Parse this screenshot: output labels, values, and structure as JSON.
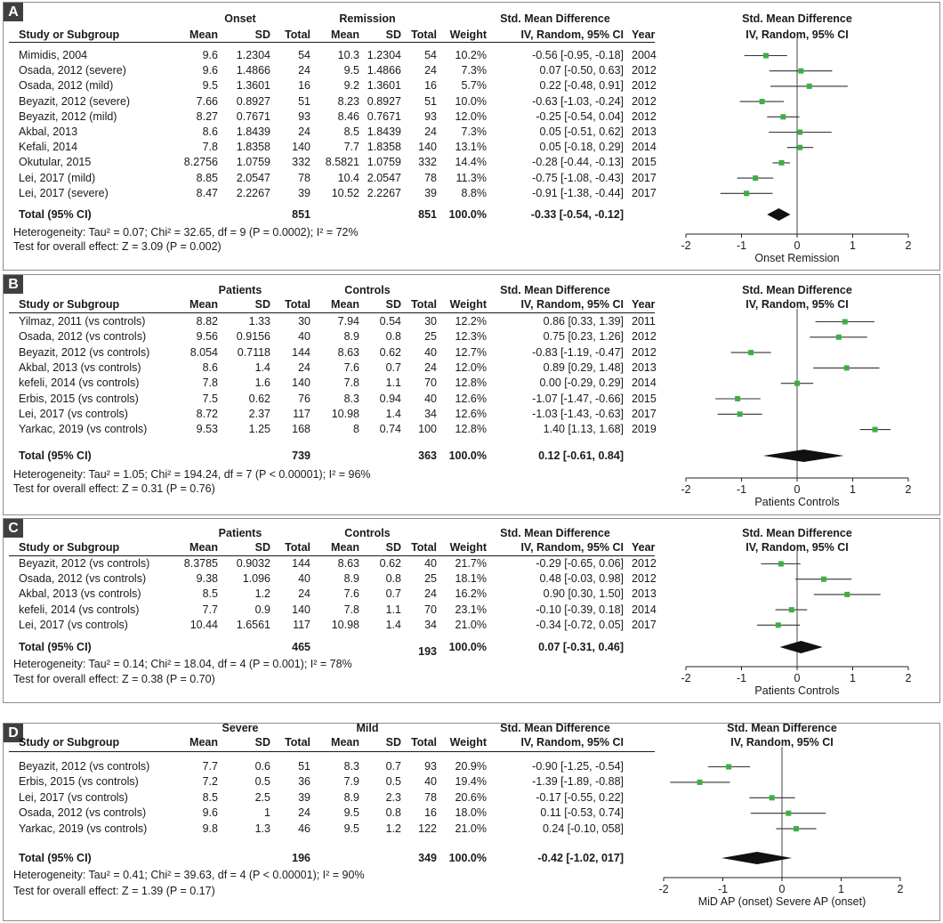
{
  "panels": [
    {
      "letter": "A",
      "group1": "Onset",
      "group2": "Remission",
      "col_study": "Study or Subgroup",
      "col_mean1": "Mean",
      "col_sd1": "SD",
      "col_total1": "Total",
      "col_mean2": "Mean",
      "col_sd2": "SD",
      "col_total2": "Total",
      "col_weight": "Weight",
      "col_smd1": "Std. Mean Difference",
      "col_smd2": "IV, Random, 95% CI",
      "col_year": "Year",
      "plot_title1": "Std. Mean Difference",
      "plot_title2": "IV, Random, 95% CI",
      "rows": [
        {
          "study": "Mimidis, 2004",
          "m1": "9.6",
          "sd1": "1.2304",
          "n1": "54",
          "m2": "10.3",
          "sd2": "1.2304",
          "n2": "54",
          "w": "10.2%",
          "ci": "-0.56 [-0.95, -0.18]",
          "year": "2004"
        },
        {
          "study": "Osada, 2012 (severe)",
          "m1": "9.6",
          "sd1": "1.4866",
          "n1": "24",
          "m2": "9.5",
          "sd2": "1.4866",
          "n2": "24",
          "w": "7.3%",
          "ci": "0.07 [-0.50, 0.63]",
          "year": "2012"
        },
        {
          "study": "Osada, 2012 (mild)",
          "m1": "9.5",
          "sd1": "1.3601",
          "n1": "16",
          "m2": "9.2",
          "sd2": "1.3601",
          "n2": "16",
          "w": "5.7%",
          "ci": "0.22 [-0.48, 0.91]",
          "year": "2012"
        },
        {
          "study": "Beyazit, 2012 (severe)",
          "m1": "7.66",
          "sd1": "0.8927",
          "n1": "51",
          "m2": "8.23",
          "sd2": "0.8927",
          "n2": "51",
          "w": "10.0%",
          "ci": "-0.63 [-1.03, -0.24]",
          "year": "2012"
        },
        {
          "study": "Beyazit, 2012 (mild)",
          "m1": "8.27",
          "sd1": "0.7671",
          "n1": "93",
          "m2": "8.46",
          "sd2": "0.7671",
          "n2": "93",
          "w": "12.0%",
          "ci": "-0.25 [-0.54, 0.04]",
          "year": "2012"
        },
        {
          "study": "Akbal, 2013",
          "m1": "8.6",
          "sd1": "1.8439",
          "n1": "24",
          "m2": "8.5",
          "sd2": "1.8439",
          "n2": "24",
          "w": "7.3%",
          "ci": "0.05 [-0.51, 0.62]",
          "year": "2013"
        },
        {
          "study": "Kefali, 2014",
          "m1": "7.8",
          "sd1": "1.8358",
          "n1": "140",
          "m2": "7.7",
          "sd2": "1.8358",
          "n2": "140",
          "w": "13.1%",
          "ci": "0.05 [-0.18, 0.29]",
          "year": "2014"
        },
        {
          "study": "Okutular, 2015",
          "m1": "8.2756",
          "sd1": "1.0759",
          "n1": "332",
          "m2": "8.5821",
          "sd2": "1.0759",
          "n2": "332",
          "w": "14.4%",
          "ci": "-0.28 [-0.44, -0.13]",
          "year": "2015"
        },
        {
          "study": "Lei, 2017 (mild)",
          "m1": "8.85",
          "sd1": "2.0547",
          "n1": "78",
          "m2": "10.4",
          "sd2": "2.0547",
          "n2": "78",
          "w": "11.3%",
          "ci": "-0.75 [-1.08, -0.43]",
          "year": "2017"
        },
        {
          "study": "Lei, 2017 (severe)",
          "m1": "8.47",
          "sd1": "2.2267",
          "n1": "39",
          "m2": "10.52",
          "sd2": "2.2267",
          "n2": "39",
          "w": "8.8%",
          "ci": "-0.91 [-1.38, -0.44]",
          "year": "2017"
        }
      ],
      "total": {
        "label": "Total (95% CI)",
        "n1": "851",
        "n2": "851",
        "w": "100.0%",
        "ci": "-0.33 [-0.54, -0.12]"
      },
      "heterogeneity": "Heterogeneity: Tau² = 0.07; Chi² = 32.65, df = 9 (P = 0.0002); I² = 72%",
      "overall": "Test for overall effect: Z = 3.09 (P = 0.002)",
      "axis_ticks": [
        "-2",
        "-1",
        "0",
        "1",
        "2"
      ],
      "axis_label": "Onset Remission"
    },
    {
      "letter": "B",
      "group1": "Patients",
      "group2": "Controls",
      "col_study": "Study or Subgroup",
      "col_mean1": "Mean",
      "col_sd1": "SD",
      "col_total1": "Total",
      "col_mean2": "Mean",
      "col_sd2": "SD",
      "col_total2": "Total",
      "col_weight": "Weight",
      "col_smd1": "Std. Mean Difference",
      "col_smd2": "IV, Random, 95% CI",
      "col_year": "Year",
      "plot_title1": "Std. Mean Difference",
      "plot_title2": "IV, Random, 95% CI",
      "rows": [
        {
          "study": "Yilmaz, 2011 (vs controls)",
          "m1": "8.82",
          "sd1": "1.33",
          "n1": "30",
          "m2": "7.94",
          "sd2": "0.54",
          "n2": "30",
          "w": "12.2%",
          "ci": "0.86 [0.33, 1.39]",
          "year": "2011"
        },
        {
          "study": "Osada, 2012 (vs controls)",
          "m1": "9.56",
          "sd1": "0.9156",
          "n1": "40",
          "m2": "8.9",
          "sd2": "0.8",
          "n2": "25",
          "w": "12.3%",
          "ci": "0.75 [0.23, 1.26]",
          "year": "2012"
        },
        {
          "study": "Beyazit, 2012 (vs controls)",
          "m1": "8.054",
          "sd1": "0.7118",
          "n1": "144",
          "m2": "8.63",
          "sd2": "0.62",
          "n2": "40",
          "w": "12.7%",
          "ci": "-0.83 [-1.19, -0.47]",
          "year": "2012"
        },
        {
          "study": "Akbal, 2013  (vs controls)",
          "m1": "8.6",
          "sd1": "1.4",
          "n1": "24",
          "m2": "7.6",
          "sd2": "0.7",
          "n2": "24",
          "w": "12.0%",
          "ci": "0.89 [0.29, 1.48]",
          "year": "2013"
        },
        {
          "study": "kefeli, 2014 (vs controls)",
          "m1": "7.8",
          "sd1": "1.6",
          "n1": "140",
          "m2": "7.8",
          "sd2": "1.1",
          "n2": "70",
          "w": "12.8%",
          "ci": "0.00 [-0.29, 0.29]",
          "year": "2014"
        },
        {
          "study": "Erbis, 2015 (vs controls)",
          "m1": "7.5",
          "sd1": "0.62",
          "n1": "76",
          "m2": "8.3",
          "sd2": "0.94",
          "n2": "40",
          "w": "12.6%",
          "ci": "-1.07 [-1.47, -0.66]",
          "year": "2015"
        },
        {
          "study": "Lei, 2017  (vs controls)",
          "m1": "8.72",
          "sd1": "2.37",
          "n1": "117",
          "m2": "10.98",
          "sd2": "1.4",
          "n2": "34",
          "w": "12.6%",
          "ci": "-1.03 [-1.43, -0.63]",
          "year": "2017"
        },
        {
          "study": "Yarkac, 2019  (vs controls)",
          "m1": "9.53",
          "sd1": "1.25",
          "n1": "168",
          "m2": "8",
          "sd2": "0.74",
          "n2": "100",
          "w": "12.8%",
          "ci": "1.40 [1.13, 1.68]",
          "year": "2019"
        }
      ],
      "total": {
        "label": "Total (95% CI)",
        "n1": "739",
        "n2": "363",
        "w": "100.0%",
        "ci": "0.12 [-0.61, 0.84]"
      },
      "heterogeneity": "Heterogeneity: Tau² = 1.05; Chi² = 194.24, df = 7 (P < 0.00001); I² = 96%",
      "overall": "Test for overall effect: Z = 0.31 (P = 0.76)",
      "axis_ticks": [
        "-2",
        "-1",
        "0",
        "1",
        "2"
      ],
      "axis_label": "Patients Controls"
    },
    {
      "letter": "C",
      "group1": "Patients",
      "group2": "Controls",
      "col_study": "Study or Subgroup",
      "col_mean1": "Mean",
      "col_sd1": "SD",
      "col_total1": "Total",
      "col_mean2": "Mean",
      "col_sd2": "SD",
      "col_total2": "Total",
      "col_weight": "Weight",
      "col_smd1": "Std. Mean Difference",
      "col_smd2": "IV, Random, 95% CI",
      "col_year": "Year",
      "plot_title1": "Std. Mean Difference",
      "plot_title2": "IV, Random, 95% CI",
      "rows": [
        {
          "study": "Beyazit, 2012 (vs controls)",
          "m1": "8.3785",
          "sd1": "0.9032",
          "n1": "144",
          "m2": "8.63",
          "sd2": "0.62",
          "n2": "40",
          "w": "21.7%",
          "ci": "-0.29 [-0.65, 0.06]",
          "year": "2012"
        },
        {
          "study": "Osada, 2012 (vs controls)",
          "m1": "9.38",
          "sd1": "1.096",
          "n1": "40",
          "m2": "8.9",
          "sd2": "0.8",
          "n2": "25",
          "w": "18.1%",
          "ci": "0.48 [-0.03, 0.98]",
          "year": "2012"
        },
        {
          "study": "Akbal, 2013  (vs controls)",
          "m1": "8.5",
          "sd1": "1.2",
          "n1": "24",
          "m2": "7.6",
          "sd2": "0.7",
          "n2": "24",
          "w": "16.2%",
          "ci": "0.90 [0.30, 1.50]",
          "year": "2013"
        },
        {
          "study": "kefeli, 2014 (vs controls)",
          "m1": "7.7",
          "sd1": "0.9",
          "n1": "140",
          "m2": "7.8",
          "sd2": "1.1",
          "n2": "70",
          "w": "23.1%",
          "ci": "-0.10 [-0.39, 0.18]",
          "year": "2014"
        },
        {
          "study": "Lei, 2017  (vs controls)",
          "m1": "10.44",
          "sd1": "1.6561",
          "n1": "117",
          "m2": "10.98",
          "sd2": "1.4",
          "n2": "34",
          "w": "21.0%",
          "ci": "-0.34 [-0.72, 0.05]",
          "year": "2017"
        }
      ],
      "total": {
        "label": "Total (95% CI)",
        "n1": "465",
        "n2": "193",
        "w": "100.0%",
        "ci": "0.07 [-0.31, 0.46]"
      },
      "heterogeneity": "Heterogeneity: Tau² = 0.14; Chi² = 18.04, df = 4 (P = 0.001); I² = 78%",
      "overall": "Test for overall effect: Z = 0.38 (P = 0.70)",
      "axis_ticks": [
        "-2",
        "-1",
        "0",
        "1",
        "2"
      ],
      "axis_label": "Patients Controls"
    },
    {
      "letter": "D",
      "group1": "Severe",
      "group2": "Mild",
      "col_study": "Study or Subgroup",
      "col_mean1": "Mean",
      "col_sd1": "SD",
      "col_total1": "Total",
      "col_mean2": "Mean",
      "col_sd2": "SD",
      "col_total2": "Total",
      "col_weight": "Weight",
      "col_smd1": "Std. Mean Difference",
      "col_smd2": "IV, Random, 95% CI",
      "col_year": "",
      "plot_title1": "Std. Mean Difference",
      "plot_title2": "IV, Random, 95% CI",
      "rows": [
        {
          "study": "Beyazit, 2012 (vs controls)",
          "m1": "7.7",
          "sd1": "0.6",
          "n1": "51",
          "m2": "8.3",
          "sd2": "0.7",
          "n2": "93",
          "w": "20.9%",
          "ci": "-0.90 [-1.25, -0.54]",
          "year": ""
        },
        {
          "study": "Erbis, 2015 (vs controls)",
          "m1": "7.2",
          "sd1": "0.5",
          "n1": "36",
          "m2": "7.9",
          "sd2": "0.5",
          "n2": "40",
          "w": "19.4%",
          "ci": "-1.39 [-1.89, -0.88]",
          "year": ""
        },
        {
          "study": "Lei, 2017 (vs controls)",
          "m1": "8.5",
          "sd1": "2.5",
          "n1": "39",
          "m2": "8.9",
          "sd2": "2.3",
          "n2": "78",
          "w": "20.6%",
          "ci": "-0.17 [-0.55, 0.22]",
          "year": ""
        },
        {
          "study": "Osada, 2012 (vs controls)",
          "m1": "9.6",
          "sd1": "1",
          "n1": "24",
          "m2": "9.5",
          "sd2": "0.8",
          "n2": "16",
          "w": "18.0%",
          "ci": "0.11 [-0.53, 0.74]",
          "year": ""
        },
        {
          "study": "Yarkac, 2019 (vs controls)",
          "m1": "9.8",
          "sd1": "1.3",
          "n1": "46",
          "m2": "9.5",
          "sd2": "1.2",
          "n2": "122",
          "w": "21.0%",
          "ci": "0.24 [-0.10, 058]",
          "year": ""
        }
      ],
      "total": {
        "label": "Total (95% CI)",
        "n1": "196",
        "n2": "349",
        "w": "100.0%",
        "ci": "-0.42 [-1.02, 017]"
      },
      "heterogeneity": "Heterogeneity: Tau² = 0.41; Chi² = 39.63, df = 4 (P < 0.00001); I² = 90%",
      "overall": "Test for overall effect: Z = 1.39 (P = 0.17)",
      "axis_ticks": [
        "-2",
        "-1",
        "0",
        "1",
        "2"
      ],
      "axis_label": "MiD AP (onset) Severe AP (onset)"
    }
  ],
  "chart_data": [
    {
      "type": "scatter",
      "panel": "A",
      "xlim": [
        -2,
        2
      ],
      "marker_color": "#3cb043",
      "studies": [
        {
          "est": -0.56,
          "lo": -0.95,
          "hi": -0.18
        },
        {
          "est": 0.07,
          "lo": -0.5,
          "hi": 0.63
        },
        {
          "est": 0.22,
          "lo": -0.48,
          "hi": 0.91
        },
        {
          "est": -0.63,
          "lo": -1.03,
          "hi": -0.24
        },
        {
          "est": -0.25,
          "lo": -0.54,
          "hi": 0.04
        },
        {
          "est": 0.05,
          "lo": -0.51,
          "hi": 0.62
        },
        {
          "est": 0.05,
          "lo": -0.18,
          "hi": 0.29
        },
        {
          "est": -0.28,
          "lo": -0.44,
          "hi": -0.13
        },
        {
          "est": -0.75,
          "lo": -1.08,
          "hi": -0.43
        },
        {
          "est": -0.91,
          "lo": -1.38,
          "hi": -0.44
        }
      ],
      "pooled": {
        "est": -0.33,
        "lo": -0.54,
        "hi": -0.12
      }
    },
    {
      "type": "scatter",
      "panel": "B",
      "xlim": [
        -2,
        2
      ],
      "marker_color": "#3cb043",
      "studies": [
        {
          "est": 0.86,
          "lo": 0.33,
          "hi": 1.39
        },
        {
          "est": 0.75,
          "lo": 0.23,
          "hi": 1.26
        },
        {
          "est": -0.83,
          "lo": -1.19,
          "hi": -0.47
        },
        {
          "est": 0.89,
          "lo": 0.29,
          "hi": 1.48
        },
        {
          "est": 0.0,
          "lo": -0.29,
          "hi": 0.29
        },
        {
          "est": -1.07,
          "lo": -1.47,
          "hi": -0.66
        },
        {
          "est": -1.03,
          "lo": -1.43,
          "hi": -0.63
        },
        {
          "est": 1.4,
          "lo": 1.13,
          "hi": 1.68
        }
      ],
      "pooled": {
        "est": 0.12,
        "lo": -0.61,
        "hi": 0.84
      }
    },
    {
      "type": "scatter",
      "panel": "C",
      "xlim": [
        -2,
        2
      ],
      "marker_color": "#3cb043",
      "studies": [
        {
          "est": -0.29,
          "lo": -0.65,
          "hi": 0.06
        },
        {
          "est": 0.48,
          "lo": -0.03,
          "hi": 0.98
        },
        {
          "est": 0.9,
          "lo": 0.3,
          "hi": 1.5
        },
        {
          "est": -0.1,
          "lo": -0.39,
          "hi": 0.18
        },
        {
          "est": -0.34,
          "lo": -0.72,
          "hi": 0.05
        }
      ],
      "pooled": {
        "est": 0.07,
        "lo": -0.31,
        "hi": 0.46
      }
    },
    {
      "type": "scatter",
      "panel": "D",
      "xlim": [
        -2,
        2
      ],
      "marker_color": "#3cb043",
      "studies": [
        {
          "est": -0.9,
          "lo": -1.25,
          "hi": -0.54
        },
        {
          "est": -1.39,
          "lo": -1.89,
          "hi": -0.88
        },
        {
          "est": -0.17,
          "lo": -0.55,
          "hi": 0.22
        },
        {
          "est": 0.11,
          "lo": -0.53,
          "hi": 0.74
        },
        {
          "est": 0.24,
          "lo": -0.1,
          "hi": 0.58
        }
      ],
      "pooled": {
        "est": -0.42,
        "lo": -1.02,
        "hi": 0.17
      }
    }
  ]
}
